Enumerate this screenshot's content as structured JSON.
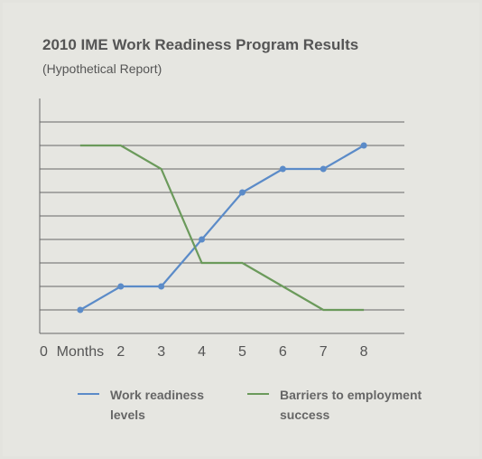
{
  "chart_data": {
    "type": "line",
    "title": "2010 IME Work Readiness Program Results",
    "subtitle": "(Hypothetical Report)",
    "x": [
      1,
      2,
      3,
      4,
      5,
      6,
      7,
      8
    ],
    "series": [
      {
        "name": "Work readiness levels",
        "color": "#5b8bc8",
        "markers": true,
        "values": [
          1,
          2,
          2,
          4,
          6,
          7,
          7,
          8
        ]
      },
      {
        "name": "Barriers to employment success",
        "color": "#6b9a5b",
        "markers": false,
        "values": [
          8,
          8,
          7,
          3,
          3,
          2,
          1,
          1
        ]
      }
    ],
    "xlim": [
      0,
      9
    ],
    "xticks": [
      0,
      {
        "value": 1,
        "label": "Months"
      },
      2,
      3,
      4,
      5,
      6,
      7,
      8
    ],
    "ylim": [
      0,
      10
    ],
    "yticks": [
      1,
      2,
      3,
      4,
      5,
      6,
      7,
      8,
      9
    ],
    "grid": true
  }
}
